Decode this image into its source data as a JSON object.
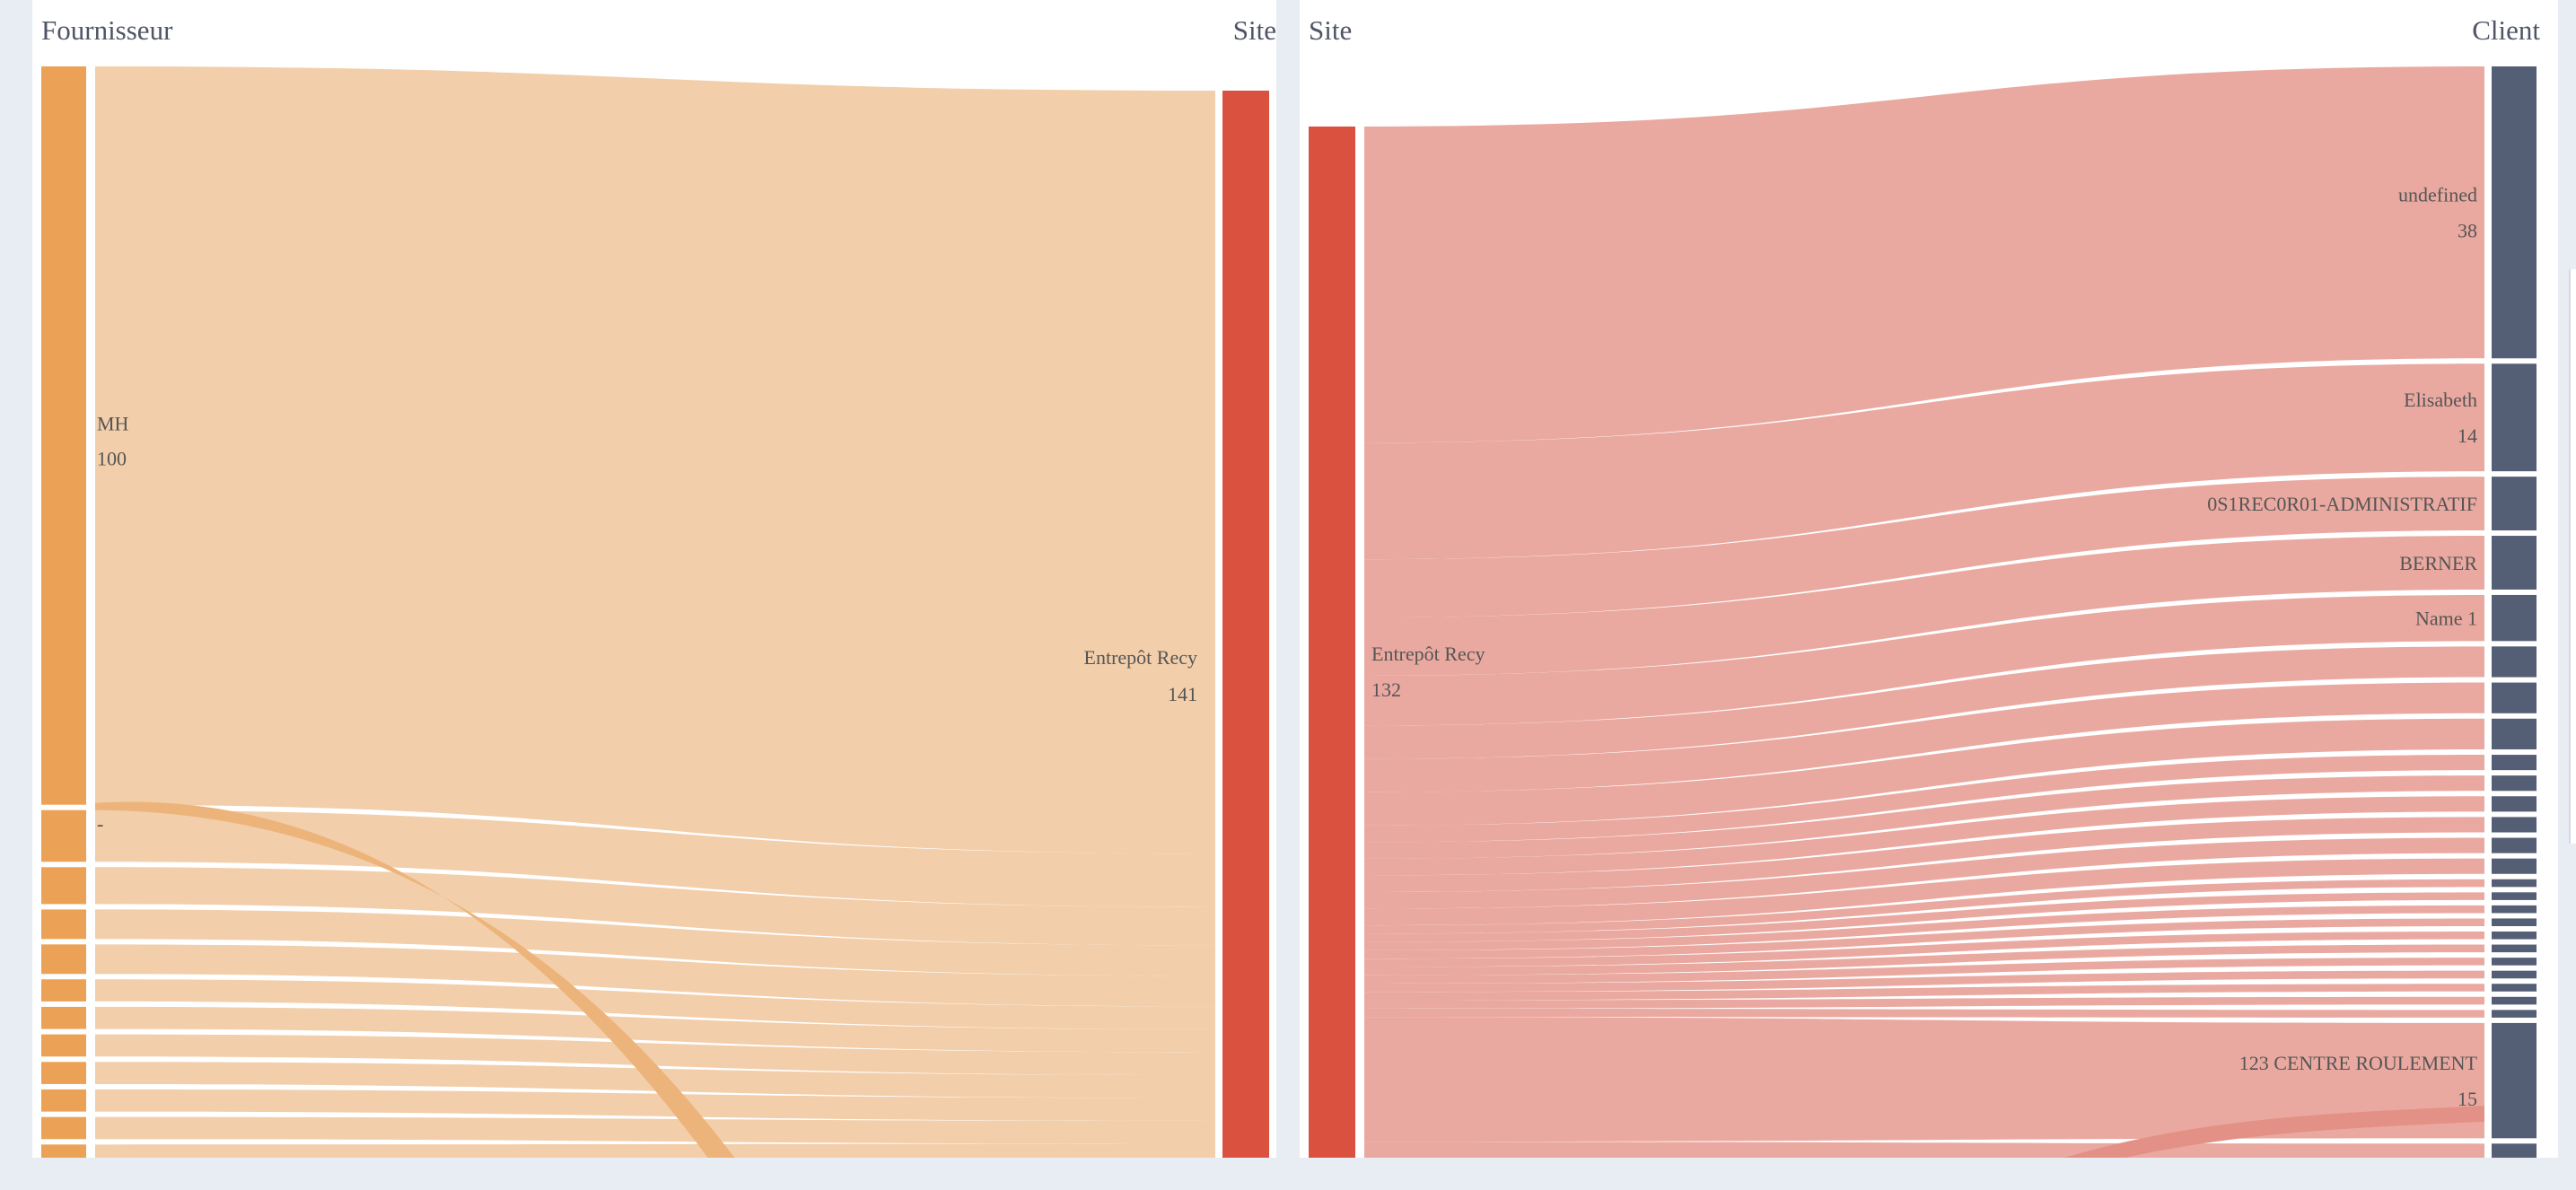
{
  "chart_data": [
    {
      "type": "sankey",
      "title": "Fournisseur → Site",
      "source_header": "Fournisseur",
      "target_header": "Site",
      "colors": {
        "source": "#eba256",
        "link": "#f2ceaa",
        "target": "#da5140"
      },
      "sources": [
        {
          "label": "MH",
          "value": 100,
          "show_value": true
        },
        {
          "label": "-",
          "value": 7,
          "show_value": false
        },
        {
          "label": "",
          "value": 5,
          "show_value": false
        },
        {
          "label": "",
          "value": 4,
          "show_value": false
        },
        {
          "label": "",
          "value": 4,
          "show_value": false
        },
        {
          "label": "",
          "value": 3,
          "show_value": false
        },
        {
          "label": "",
          "value": 3,
          "show_value": false
        },
        {
          "label": "",
          "value": 3,
          "show_value": false
        },
        {
          "label": "",
          "value": 3,
          "show_value": false
        },
        {
          "label": "",
          "value": 3,
          "show_value": false
        },
        {
          "label": "",
          "value": 3,
          "show_value": false
        },
        {
          "label": "",
          "value": 3,
          "show_value": false
        }
      ],
      "target": {
        "label": "Entrepôt Recy",
        "value": 141
      }
    },
    {
      "type": "sankey",
      "title": "Site → Client",
      "source_header": "Site",
      "target_header": "Client",
      "colors": {
        "source": "#da5140",
        "link": "#eaa9a0",
        "target": "#545e75"
      },
      "source": {
        "label": "Entrepôt Recy",
        "value": 132
      },
      "targets": [
        {
          "label": "undefined",
          "value": 38,
          "show_value": true
        },
        {
          "label": "Elisabeth",
          "value": 14,
          "show_value": true
        },
        {
          "label": "0S1REC0R01-ADMINISTRATIF",
          "value": 7,
          "show_value": false
        },
        {
          "label": "BERNER",
          "value": 7,
          "show_value": false
        },
        {
          "label": "Name 1",
          "value": 6,
          "show_value": false
        },
        {
          "label": "",
          "value": 4,
          "show_value": false
        },
        {
          "label": "",
          "value": 4,
          "show_value": false
        },
        {
          "label": "",
          "value": 4,
          "show_value": false
        },
        {
          "label": "",
          "value": 2,
          "show_value": false
        },
        {
          "label": "",
          "value": 2,
          "show_value": false
        },
        {
          "label": "",
          "value": 2,
          "show_value": false
        },
        {
          "label": "",
          "value": 2,
          "show_value": false
        },
        {
          "label": "",
          "value": 2,
          "show_value": false
        },
        {
          "label": "",
          "value": 2,
          "show_value": false
        },
        {
          "label": "",
          "value": 1,
          "show_value": false
        },
        {
          "label": "",
          "value": 1,
          "show_value": false
        },
        {
          "label": "",
          "value": 1,
          "show_value": false
        },
        {
          "label": "",
          "value": 1,
          "show_value": false
        },
        {
          "label": "",
          "value": 1,
          "show_value": false
        },
        {
          "label": "",
          "value": 1,
          "show_value": false
        },
        {
          "label": "",
          "value": 1,
          "show_value": false
        },
        {
          "label": "",
          "value": 1,
          "show_value": false
        },
        {
          "label": "",
          "value": 1,
          "show_value": false
        },
        {
          "label": "",
          "value": 1,
          "show_value": false
        },
        {
          "label": "",
          "value": 1,
          "show_value": false
        },
        {
          "label": "123 CENTRE ROULEMENT",
          "value": 15,
          "show_value": true
        },
        {
          "label": "",
          "value": 3,
          "show_value": false
        }
      ]
    }
  ]
}
